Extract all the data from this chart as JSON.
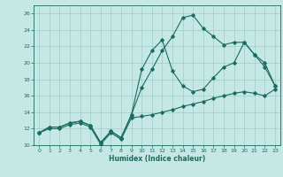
{
  "xlabel": "Humidex (Indice chaleur)",
  "bg_color": "#c5e8e5",
  "grid_color": "#a0cac8",
  "line_color": "#1a6b60",
  "xlim": [
    -0.5,
    23.5
  ],
  "ylim": [
    10,
    27
  ],
  "xticks": [
    0,
    1,
    2,
    3,
    4,
    5,
    6,
    7,
    8,
    9,
    10,
    11,
    12,
    13,
    14,
    15,
    16,
    17,
    18,
    19,
    20,
    21,
    22,
    23
  ],
  "yticks": [
    10,
    12,
    14,
    16,
    18,
    20,
    22,
    24,
    26
  ],
  "line_top_x": [
    0,
    1,
    2,
    3,
    4,
    5,
    6,
    7,
    8,
    9,
    10,
    11,
    12,
    13,
    14,
    15,
    16,
    17,
    18,
    19,
    20,
    21,
    22,
    23
  ],
  "line_top_y": [
    11.5,
    12.2,
    12.2,
    12.7,
    12.9,
    12.4,
    10.3,
    11.7,
    10.9,
    13.7,
    17.0,
    19.2,
    21.5,
    23.2,
    25.5,
    25.8,
    24.2,
    23.2,
    22.2,
    22.5,
    22.5,
    21.0,
    19.5,
    17.2
  ],
  "line_mid_x": [
    0,
    1,
    2,
    3,
    4,
    5,
    6,
    7,
    8,
    9,
    10,
    11,
    12,
    13,
    14,
    15,
    16,
    17,
    18,
    19,
    20,
    21,
    22,
    23
  ],
  "line_mid_y": [
    11.5,
    12.2,
    12.2,
    12.7,
    12.9,
    12.4,
    10.3,
    11.7,
    10.9,
    13.7,
    19.2,
    21.5,
    22.8,
    19.0,
    17.2,
    16.5,
    16.8,
    18.2,
    19.5,
    20.0,
    22.5,
    21.0,
    20.0,
    17.2
  ],
  "line_bot_x": [
    0,
    1,
    2,
    3,
    4,
    5,
    6,
    7,
    8,
    9,
    10,
    11,
    12,
    13,
    14,
    15,
    16,
    17,
    18,
    19,
    20,
    21,
    22,
    23
  ],
  "line_bot_y": [
    11.5,
    12.0,
    12.0,
    12.5,
    12.7,
    12.2,
    10.1,
    11.5,
    10.7,
    13.3,
    13.5,
    13.7,
    14.0,
    14.3,
    14.7,
    15.0,
    15.3,
    15.7,
    16.0,
    16.3,
    16.5,
    16.3,
    16.0,
    16.8
  ]
}
